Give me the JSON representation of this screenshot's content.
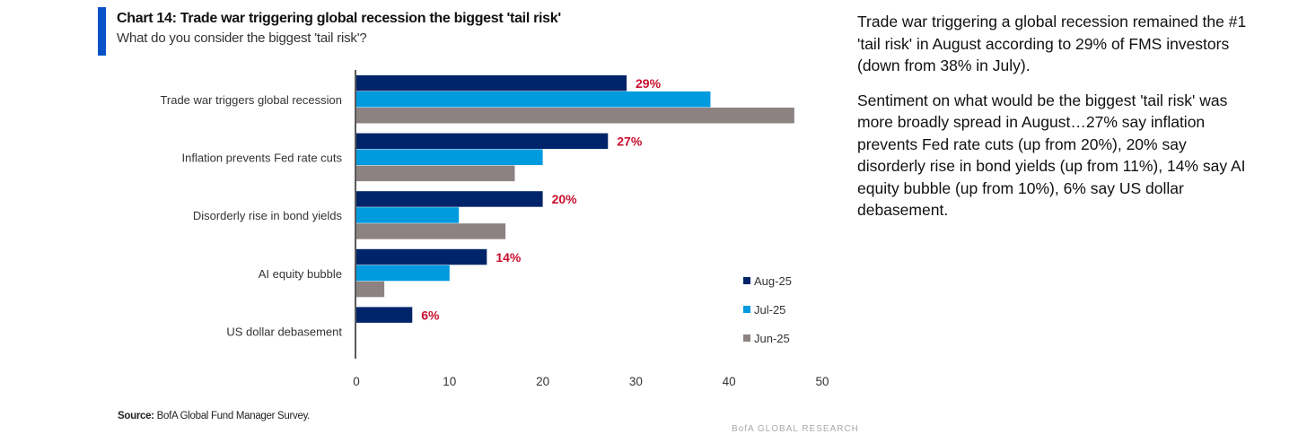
{
  "header": {
    "title": "Chart 14: Trade war triggering global recession the biggest 'tail risk'",
    "subtitle": "What do you consider the biggest 'tail risk'?"
  },
  "footer": {
    "source_label": "Source:",
    "source_text": "BofA Global Fund Manager Survey.",
    "brand": "BofA GLOBAL RESEARCH"
  },
  "commentary": [
    "Trade war triggering a global recession remained the #1 'tail risk' in August according to 29% of FMS investors (down from 38% in July).",
    "Sentiment on what would be the biggest 'tail risk' was more broadly spread in August…27% say inflation prevents Fed rate cuts (up from 20%), 20% say disorderly rise in bond yields (up from 11%), 14% say AI equity bubble (up from 10%), 6% say US dollar debasement."
  ],
  "chart_data": {
    "type": "bar",
    "orientation": "horizontal",
    "title": "Chart 14: Trade war triggering global recession the biggest 'tail risk'",
    "categories": [
      "Trade war triggers global recession",
      "Inflation prevents Fed rate cuts",
      "Disorderly rise in bond yields",
      "AI equity bubble",
      "US dollar debasement"
    ],
    "series": [
      {
        "name": "Aug-25",
        "color": "#002469",
        "values": [
          29,
          27,
          20,
          14,
          6
        ],
        "labels": [
          "29%",
          "27%",
          "20%",
          "14%",
          "6%"
        ]
      },
      {
        "name": "Jul-25",
        "color": "#009ade",
        "values": [
          38,
          20,
          11,
          10,
          0
        ]
      },
      {
        "name": "Jun-25",
        "color": "#8d8282",
        "values": [
          47,
          17,
          16,
          3,
          0
        ]
      }
    ],
    "xlim": [
      0,
      50
    ],
    "xticks": [
      "0",
      "10",
      "20",
      "30",
      "40",
      "50"
    ],
    "legend_position": "bottom-right",
    "label_color": "#c8102e",
    "grid": false
  }
}
